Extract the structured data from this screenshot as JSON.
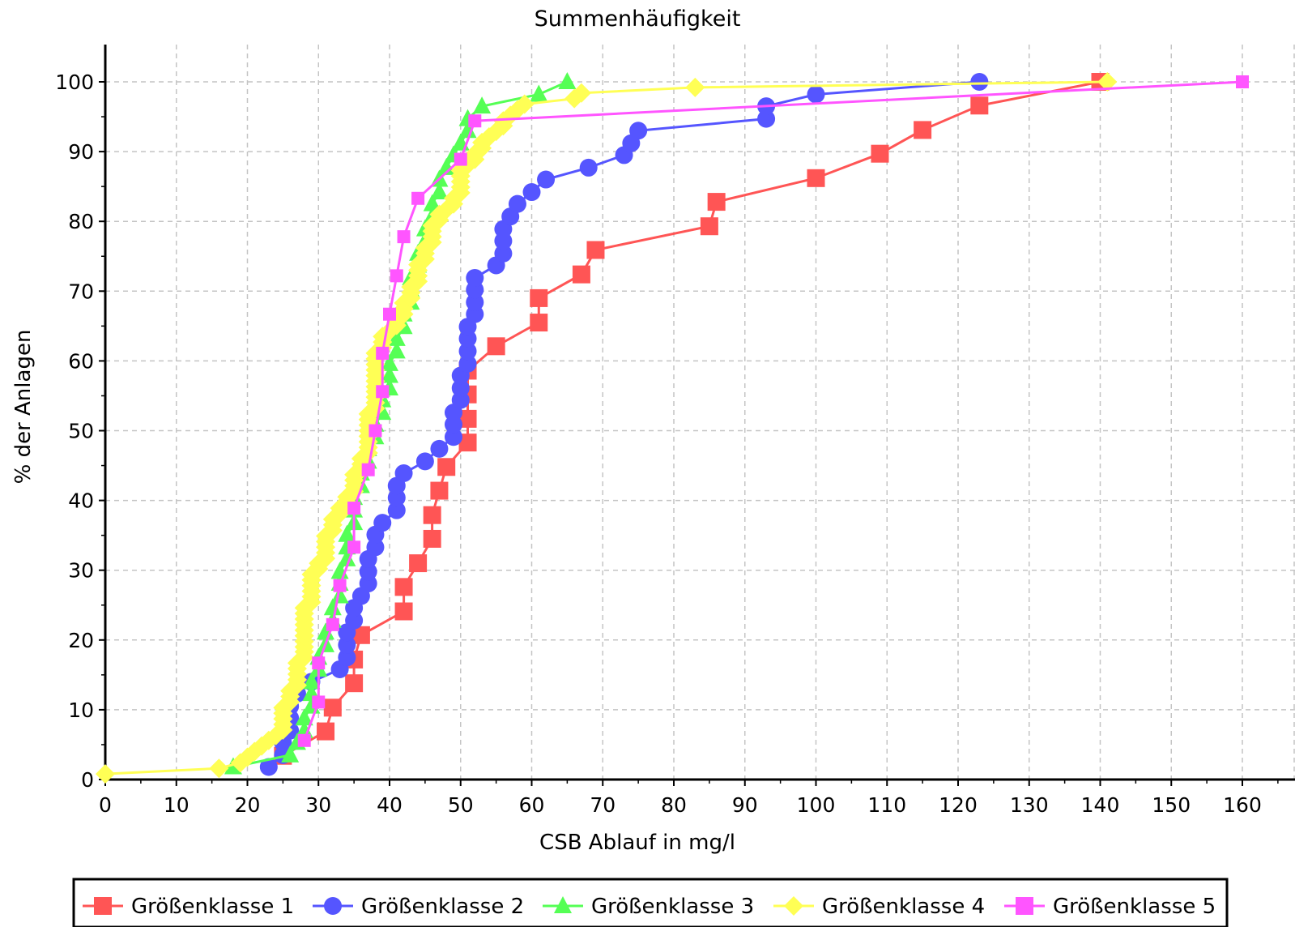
{
  "chart_data": {
    "type": "line",
    "title": "Summenhäufigkeit",
    "xlabel": "CSB Ablauf in mg/l",
    "ylabel": "% der Anlagen",
    "xlim": [
      0,
      167
    ],
    "ylim": [
      0,
      105
    ],
    "x_ticks": [
      0,
      10,
      20,
      30,
      40,
      50,
      60,
      70,
      80,
      90,
      100,
      110,
      120,
      130,
      140,
      150,
      160
    ],
    "y_ticks": [
      0,
      10,
      20,
      30,
      40,
      50,
      60,
      70,
      80,
      90,
      100
    ],
    "grid": true,
    "legend_position": "bottom",
    "series": [
      {
        "name": "Größenklasse 1",
        "color": "#ff5555",
        "marker": "square",
        "points": [
          [
            25,
            3.4
          ],
          [
            31,
            6.9
          ],
          [
            32,
            10.3
          ],
          [
            35,
            13.8
          ],
          [
            35,
            17.2
          ],
          [
            36,
            20.7
          ],
          [
            42,
            24.1
          ],
          [
            42,
            27.6
          ],
          [
            44,
            31.0
          ],
          [
            46,
            34.5
          ],
          [
            46,
            37.9
          ],
          [
            47,
            41.4
          ],
          [
            48,
            44.8
          ],
          [
            51,
            48.3
          ],
          [
            51,
            51.7
          ],
          [
            51,
            55.2
          ],
          [
            51,
            58.6
          ],
          [
            55,
            62.1
          ],
          [
            61,
            65.5
          ],
          [
            61,
            69.0
          ],
          [
            67,
            72.4
          ],
          [
            69,
            75.9
          ],
          [
            85,
            79.3
          ],
          [
            86,
            82.8
          ],
          [
            100,
            86.2
          ],
          [
            109,
            89.7
          ],
          [
            115,
            93.1
          ],
          [
            123,
            96.6
          ],
          [
            140,
            100
          ]
        ]
      },
      {
        "name": "Größenklasse 2",
        "color": "#5555ff",
        "marker": "circle",
        "points": [
          [
            23,
            1.8
          ],
          [
            25,
            3.5
          ],
          [
            25,
            5.3
          ],
          [
            26,
            7.0
          ],
          [
            26,
            8.8
          ],
          [
            26,
            10.5
          ],
          [
            27,
            12.3
          ],
          [
            29,
            14.0
          ],
          [
            33,
            15.8
          ],
          [
            34,
            17.5
          ],
          [
            34,
            19.3
          ],
          [
            34,
            21.1
          ],
          [
            35,
            22.8
          ],
          [
            35,
            24.6
          ],
          [
            36,
            26.3
          ],
          [
            37,
            28.1
          ],
          [
            37,
            29.8
          ],
          [
            37,
            31.6
          ],
          [
            38,
            33.3
          ],
          [
            38,
            35.1
          ],
          [
            39,
            36.8
          ],
          [
            41,
            38.6
          ],
          [
            41,
            40.4
          ],
          [
            41,
            42.1
          ],
          [
            42,
            43.9
          ],
          [
            45,
            45.6
          ],
          [
            47,
            47.4
          ],
          [
            49,
            49.1
          ],
          [
            49,
            50.9
          ],
          [
            49,
            52.6
          ],
          [
            50,
            54.4
          ],
          [
            50,
            56.1
          ],
          [
            50,
            57.9
          ],
          [
            51,
            59.6
          ],
          [
            51,
            61.4
          ],
          [
            51,
            63.2
          ],
          [
            51,
            64.9
          ],
          [
            52,
            66.7
          ],
          [
            52,
            68.4
          ],
          [
            52,
            70.2
          ],
          [
            52,
            71.9
          ],
          [
            55,
            73.7
          ],
          [
            56,
            75.4
          ],
          [
            56,
            77.2
          ],
          [
            56,
            78.9
          ],
          [
            57,
            80.7
          ],
          [
            58,
            82.5
          ],
          [
            60,
            84.2
          ],
          [
            62,
            86.0
          ],
          [
            68,
            87.7
          ],
          [
            73,
            89.5
          ],
          [
            74,
            91.2
          ],
          [
            75,
            93.0
          ],
          [
            93,
            94.7
          ],
          [
            93,
            96.5
          ],
          [
            100,
            98.2
          ],
          [
            123,
            100
          ]
        ]
      },
      {
        "name": "Größenklasse 3",
        "color": "#55ff55",
        "marker": "triangle",
        "points": [
          [
            18,
            1.8
          ],
          [
            26,
            3.5
          ],
          [
            27,
            5.3
          ],
          [
            28,
            7.0
          ],
          [
            28,
            8.8
          ],
          [
            29,
            10.5
          ],
          [
            29,
            12.3
          ],
          [
            29,
            14.0
          ],
          [
            30,
            15.8
          ],
          [
            30,
            17.5
          ],
          [
            31,
            19.3
          ],
          [
            31,
            21.1
          ],
          [
            32,
            22.8
          ],
          [
            32,
            24.6
          ],
          [
            33,
            26.3
          ],
          [
            33,
            28.1
          ],
          [
            33,
            29.8
          ],
          [
            34,
            31.6
          ],
          [
            34,
            33.3
          ],
          [
            34,
            35.1
          ],
          [
            35,
            36.8
          ],
          [
            35,
            38.6
          ],
          [
            35,
            40.4
          ],
          [
            36,
            42.1
          ],
          [
            36,
            43.9
          ],
          [
            37,
            45.6
          ],
          [
            37,
            47.4
          ],
          [
            38,
            49.1
          ],
          [
            38,
            50.9
          ],
          [
            39,
            52.6
          ],
          [
            39,
            54.4
          ],
          [
            40,
            56.1
          ],
          [
            40,
            57.9
          ],
          [
            40,
            59.6
          ],
          [
            41,
            61.4
          ],
          [
            41,
            63.2
          ],
          [
            42,
            64.9
          ],
          [
            42,
            66.7
          ],
          [
            43,
            68.4
          ],
          [
            43,
            70.2
          ],
          [
            43,
            71.9
          ],
          [
            44,
            73.7
          ],
          [
            44,
            75.4
          ],
          [
            45,
            77.2
          ],
          [
            45,
            78.9
          ],
          [
            46,
            80.7
          ],
          [
            46,
            82.5
          ],
          [
            47,
            84.2
          ],
          [
            47,
            86.0
          ],
          [
            48,
            87.7
          ],
          [
            49,
            89.5
          ],
          [
            50,
            91.2
          ],
          [
            51,
            93.0
          ],
          [
            51,
            94.7
          ],
          [
            53,
            96.5
          ],
          [
            61,
            98.2
          ],
          [
            65,
            100
          ]
        ]
      },
      {
        "name": "Größenklasse 4",
        "color": "#ffff55",
        "marker": "diamond",
        "points": [
          [
            0,
            0.8
          ],
          [
            16,
            1.6
          ],
          [
            19,
            2.4
          ],
          [
            20,
            3.2
          ],
          [
            21,
            4.0
          ],
          [
            22,
            4.8
          ],
          [
            23,
            5.6
          ],
          [
            24,
            6.3
          ],
          [
            25,
            7.1
          ],
          [
            25,
            7.9
          ],
          [
            25,
            8.7
          ],
          [
            25,
            9.5
          ],
          [
            25,
            10.3
          ],
          [
            26,
            11.1
          ],
          [
            26,
            11.9
          ],
          [
            26,
            12.7
          ],
          [
            27,
            13.5
          ],
          [
            27,
            14.3
          ],
          [
            27,
            15.1
          ],
          [
            27,
            15.9
          ],
          [
            27,
            16.7
          ],
          [
            28,
            17.5
          ],
          [
            28,
            18.3
          ],
          [
            28,
            19.0
          ],
          [
            28,
            19.8
          ],
          [
            28,
            20.6
          ],
          [
            28,
            21.4
          ],
          [
            28,
            22.2
          ],
          [
            28,
            23.0
          ],
          [
            28,
            23.8
          ],
          [
            28,
            24.6
          ],
          [
            29,
            25.4
          ],
          [
            29,
            26.2
          ],
          [
            29,
            27.0
          ],
          [
            29,
            27.8
          ],
          [
            29,
            28.6
          ],
          [
            29,
            29.4
          ],
          [
            30,
            30.2
          ],
          [
            30,
            31.0
          ],
          [
            31,
            31.7
          ],
          [
            31,
            32.5
          ],
          [
            31,
            33.3
          ],
          [
            31,
            34.1
          ],
          [
            31,
            34.9
          ],
          [
            32,
            35.7
          ],
          [
            32,
            36.5
          ],
          [
            32,
            37.3
          ],
          [
            33,
            38.1
          ],
          [
            33,
            38.9
          ],
          [
            34,
            39.7
          ],
          [
            34,
            40.5
          ],
          [
            35,
            41.3
          ],
          [
            35,
            42.1
          ],
          [
            35,
            42.9
          ],
          [
            35,
            43.7
          ],
          [
            36,
            44.4
          ],
          [
            36,
            45.2
          ],
          [
            36,
            46.0
          ],
          [
            37,
            46.8
          ],
          [
            37,
            47.6
          ],
          [
            37,
            48.4
          ],
          [
            37,
            49.2
          ],
          [
            37,
            50.0
          ],
          [
            37,
            50.8
          ],
          [
            37,
            51.6
          ],
          [
            37,
            52.4
          ],
          [
            38,
            53.2
          ],
          [
            38,
            54.0
          ],
          [
            38,
            54.8
          ],
          [
            38,
            55.6
          ],
          [
            38,
            56.3
          ],
          [
            38,
            57.1
          ],
          [
            38,
            57.9
          ],
          [
            38,
            58.7
          ],
          [
            38,
            59.5
          ],
          [
            38,
            60.3
          ],
          [
            38,
            61.1
          ],
          [
            39,
            61.9
          ],
          [
            39,
            62.7
          ],
          [
            39,
            63.5
          ],
          [
            40,
            64.3
          ],
          [
            41,
            65.1
          ],
          [
            41,
            65.9
          ],
          [
            42,
            66.7
          ],
          [
            42,
            67.5
          ],
          [
            42,
            68.3
          ],
          [
            43,
            69.0
          ],
          [
            43,
            69.8
          ],
          [
            43,
            70.6
          ],
          [
            44,
            71.4
          ],
          [
            44,
            72.2
          ],
          [
            44,
            73.0
          ],
          [
            44,
            73.8
          ],
          [
            45,
            74.6
          ],
          [
            45,
            75.4
          ],
          [
            45,
            76.2
          ],
          [
            46,
            77.0
          ],
          [
            46,
            77.8
          ],
          [
            46,
            78.6
          ],
          [
            46,
            79.4
          ],
          [
            47,
            80.2
          ],
          [
            47,
            81.0
          ],
          [
            48,
            81.7
          ],
          [
            49,
            82.5
          ],
          [
            49,
            83.3
          ],
          [
            50,
            84.1
          ],
          [
            50,
            84.9
          ],
          [
            50,
            85.7
          ],
          [
            50,
            86.5
          ],
          [
            50,
            87.3
          ],
          [
            51,
            88.1
          ],
          [
            52,
            88.9
          ],
          [
            52,
            89.7
          ],
          [
            53,
            90.5
          ],
          [
            53,
            91.3
          ],
          [
            54,
            92.1
          ],
          [
            55,
            92.9
          ],
          [
            56,
            93.7
          ],
          [
            56,
            94.4
          ],
          [
            57,
            95.2
          ],
          [
            58,
            96.0
          ],
          [
            59,
            96.8
          ],
          [
            66,
            97.6
          ],
          [
            67,
            98.4
          ],
          [
            83,
            99.2
          ],
          [
            141,
            100
          ]
        ]
      },
      {
        "name": "Größenklasse 5",
        "color": "#ff55ff",
        "marker": "square-small",
        "points": [
          [
            28,
            5.6
          ],
          [
            30,
            11.1
          ],
          [
            30,
            16.7
          ],
          [
            32,
            22.2
          ],
          [
            33,
            27.8
          ],
          [
            35,
            33.3
          ],
          [
            35,
            38.9
          ],
          [
            37,
            44.4
          ],
          [
            38,
            50.0
          ],
          [
            39,
            55.6
          ],
          [
            39,
            61.1
          ],
          [
            40,
            66.7
          ],
          [
            41,
            72.2
          ],
          [
            42,
            77.8
          ],
          [
            44,
            83.3
          ],
          [
            50,
            88.9
          ],
          [
            52,
            94.4
          ],
          [
            160,
            100
          ]
        ]
      }
    ]
  }
}
